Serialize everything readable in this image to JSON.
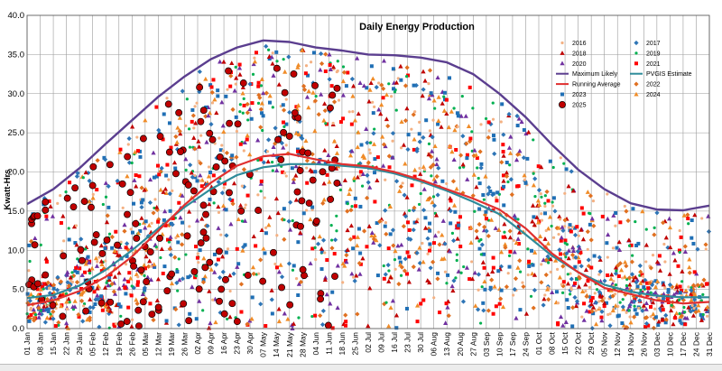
{
  "chart_data": {
    "type": "scatter",
    "title": "Daily Energy Production",
    "ylabel": "Kwatt-Hrs",
    "xlabel": "",
    "ylim": [
      0,
      40
    ],
    "yticks": [
      "0.0",
      "5.0",
      "10.0",
      "15.0",
      "20.0",
      "25.0",
      "30.0",
      "35.0",
      "40.0"
    ],
    "grid": true,
    "legend_position": "top-right",
    "categories": [
      "01 Jan",
      "08 Jan",
      "15 Jan",
      "22 Jan",
      "29 Jan",
      "05 Feb",
      "12 Feb",
      "19 Feb",
      "26 Feb",
      "05 Mar",
      "12 Mar",
      "19 Mar",
      "26 Mar",
      "02 Apr",
      "09 Apr",
      "16 Apr",
      "23 Apr",
      "30 Apr",
      "07 May",
      "14 May",
      "21 May",
      "28 May",
      "04 Jun",
      "11 Jun",
      "18 Jun",
      "25 Jun",
      "02 Jul",
      "09 Jul",
      "16 Jul",
      "23 Jul",
      "30 Jul",
      "06 Aug",
      "13 Aug",
      "20 Aug",
      "27 Aug",
      "03 Sep",
      "10 Sep",
      "17 Sep",
      "24 Sep",
      "01 Oct",
      "08 Oct",
      "15 Oct",
      "22 Oct",
      "29 Oct",
      "05 Nov",
      "12 Nov",
      "19 Nov",
      "26 Nov",
      "03 Dec",
      "10 Dec",
      "17 Dec",
      "24 Dec",
      "31 Dec"
    ],
    "legend": [
      {
        "name": "2016",
        "color": "#f4b183",
        "marker": "dot"
      },
      {
        "name": "2017",
        "color": "#2e75b6",
        "marker": "diamond"
      },
      {
        "name": "2018",
        "color": "#c00000",
        "marker": "triangle"
      },
      {
        "name": "2019",
        "color": "#00b050",
        "marker": "dot"
      },
      {
        "name": "2020",
        "color": "#7030a0",
        "marker": "triangle"
      },
      {
        "name": "2021",
        "color": "#ff0000",
        "marker": "square"
      },
      {
        "name": "Maximum Likely",
        "color": "#5b3e8f",
        "marker": "line"
      },
      {
        "name": "PVGIS Estimate",
        "color": "#2e8b9a",
        "marker": "line"
      },
      {
        "name": "Running Average",
        "color": "#e03030",
        "marker": "line"
      },
      {
        "name": "2022",
        "color": "#e07020",
        "marker": "diamond"
      },
      {
        "name": "2023",
        "color": "#1f6fb5",
        "marker": "square"
      },
      {
        "name": "2024",
        "color": "#f08c28",
        "marker": "triangle"
      },
      {
        "name": "2025",
        "color": "#c00000",
        "marker": "circle"
      }
    ],
    "series": [
      {
        "name": "Maximum Likely",
        "kind": "line",
        "color": "#5b3e8f",
        "x": [
          "01 Jan",
          "15 Jan",
          "29 Jan",
          "12 Feb",
          "26 Feb",
          "12 Mar",
          "26 Mar",
          "09 Apr",
          "23 Apr",
          "07 May",
          "21 May",
          "04 Jun",
          "18 Jun",
          "02 Jul",
          "16 Jul",
          "30 Jul",
          "13 Aug",
          "27 Aug",
          "10 Sep",
          "24 Sep",
          "08 Oct",
          "22 Oct",
          "05 Nov",
          "19 Nov",
          "03 Dec",
          "17 Dec",
          "31 Dec"
        ],
        "y": [
          15.9,
          17.8,
          20.5,
          23.6,
          26.6,
          29.6,
          32.2,
          34.4,
          35.9,
          36.8,
          36.6,
          35.9,
          35.5,
          35.0,
          34.9,
          34.6,
          34.0,
          32.5,
          30.0,
          27.0,
          23.5,
          20.3,
          17.8,
          16.0,
          15.2,
          15.1,
          15.7
        ]
      },
      {
        "name": "PVGIS Estimate",
        "kind": "line",
        "color": "#2e8b9a",
        "x": [
          "01 Jan",
          "15 Jan",
          "29 Jan",
          "12 Feb",
          "26 Feb",
          "12 Mar",
          "26 Mar",
          "09 Apr",
          "23 Apr",
          "07 May",
          "21 May",
          "04 Jun",
          "18 Jun",
          "02 Jul",
          "16 Jul",
          "30 Jul",
          "13 Aug",
          "27 Aug",
          "10 Sep",
          "24 Sep",
          "08 Oct",
          "22 Oct",
          "05 Nov",
          "19 Nov",
          "03 Dec",
          "17 Dec",
          "31 Dec"
        ],
        "y": [
          3.9,
          4.3,
          5.5,
          7.5,
          10.0,
          12.8,
          15.5,
          17.8,
          19.6,
          20.6,
          21.0,
          21.0,
          20.8,
          20.5,
          19.8,
          18.8,
          17.6,
          16.2,
          14.6,
          12.0,
          9.3,
          7.2,
          5.6,
          4.7,
          4.2,
          4.0,
          4.0
        ]
      },
      {
        "name": "Running Average",
        "kind": "line",
        "color": "#e03030",
        "x": [
          "01 Jan",
          "15 Jan",
          "29 Jan",
          "12 Feb",
          "26 Feb",
          "12 Mar",
          "26 Mar",
          "09 Apr",
          "23 Apr",
          "07 May",
          "21 May",
          "04 Jun",
          "18 Jun",
          "02 Jul",
          "16 Jul",
          "30 Jul",
          "13 Aug",
          "27 Aug",
          "10 Sep",
          "24 Sep",
          "08 Oct",
          "22 Oct",
          "05 Nov",
          "19 Nov",
          "03 Dec",
          "17 Dec",
          "31 Dec"
        ],
        "y": [
          3.0,
          3.6,
          4.8,
          6.6,
          9.2,
          12.5,
          15.8,
          18.6,
          20.8,
          22.0,
          22.3,
          21.6,
          21.0,
          20.7,
          20.0,
          19.0,
          17.8,
          16.6,
          15.2,
          12.8,
          9.6,
          7.2,
          5.2,
          4.4,
          3.6,
          3.2,
          3.4
        ]
      }
    ]
  }
}
